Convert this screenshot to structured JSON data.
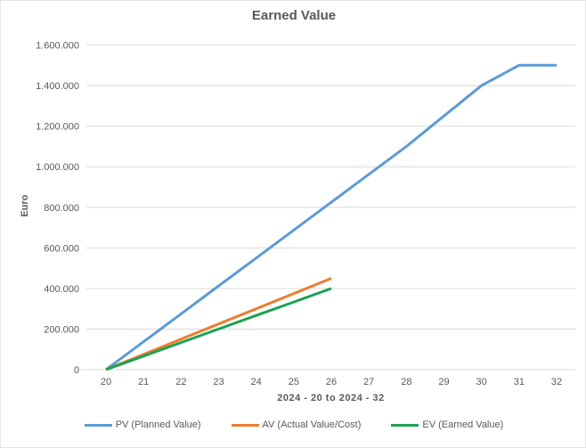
{
  "chart_data": {
    "type": "line",
    "title": "Earned Value",
    "xlabel": "2024 - 20  to  2024 - 32",
    "ylabel": "Euro",
    "x_ticks": [
      20,
      21,
      22,
      23,
      24,
      25,
      26,
      27,
      28,
      29,
      30,
      31,
      32
    ],
    "xlim": [
      20,
      32
    ],
    "ylim": [
      0,
      1600000
    ],
    "ytick_step": 200000,
    "y_tick_labels": [
      "0",
      "200.000",
      "400.000",
      "600.000",
      "800.000",
      "1.000.000",
      "1.200.000",
      "1.400.000",
      "1.600.000"
    ],
    "grid": true,
    "legend_position": "bottom",
    "background_color": "#FFFFFF",
    "gridline_color": "#D9D9D9",
    "text_color": "#595959",
    "series": [
      {
        "id": "pv",
        "name": "PV (Planned Value)",
        "color": "#5B9BD5",
        "points": [
          [
            20,
            0
          ],
          [
            21,
            137500
          ],
          [
            22,
            275000
          ],
          [
            23,
            412500
          ],
          [
            24,
            550000
          ],
          [
            25,
            687500
          ],
          [
            26,
            825000
          ],
          [
            27,
            962500
          ],
          [
            28,
            1100000
          ],
          [
            29,
            1250000
          ],
          [
            30,
            1400000
          ],
          [
            31,
            1500000
          ],
          [
            32,
            1500000
          ]
        ]
      },
      {
        "id": "av",
        "name": "AV (Actual Value/Cost)",
        "color": "#ED7D31",
        "points": [
          [
            20,
            0
          ],
          [
            21,
            75000
          ],
          [
            22,
            150000
          ],
          [
            23,
            225000
          ],
          [
            24,
            300000
          ],
          [
            25,
            375000
          ],
          [
            26,
            450000
          ]
        ]
      },
      {
        "id": "ev",
        "name": "EV (Earned Value)",
        "color": "#1AA352",
        "points": [
          [
            20,
            0
          ],
          [
            21,
            66667
          ],
          [
            22,
            133333
          ],
          [
            23,
            200000
          ],
          [
            24,
            266667
          ],
          [
            25,
            333333
          ],
          [
            26,
            400000
          ]
        ]
      }
    ]
  }
}
